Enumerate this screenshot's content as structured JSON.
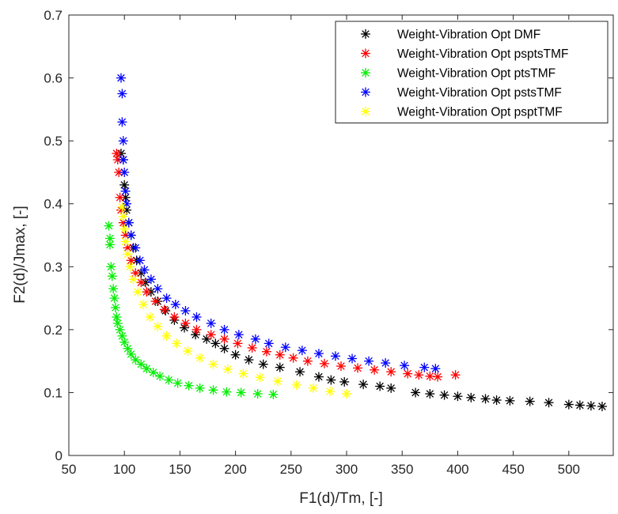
{
  "chart_data": {
    "type": "scatter",
    "title": "",
    "xlabel": "F1(d)/Tm, [-]",
    "ylabel": "F2(d)/Jmax, [-]",
    "xlim": [
      50,
      540
    ],
    "ylim": [
      0,
      0.7
    ],
    "xticks": [
      "50",
      "100",
      "150",
      "200",
      "250",
      "300",
      "350",
      "400",
      "450",
      "500"
    ],
    "yticks": [
      "0",
      "0.1",
      "0.2",
      "0.3",
      "0.4",
      "0.5",
      "0.6",
      "0.7"
    ],
    "grid": false,
    "legend_position": "top-right",
    "marker": "asterisk",
    "series": [
      {
        "name": "Weight-Vibration Opt DMF",
        "color": "#000000",
        "x": [
          97,
          99,
          100,
          101,
          102,
          104,
          106,
          108,
          111,
          115,
          119,
          124,
          130,
          137,
          145,
          154,
          164,
          174,
          182,
          190,
          200,
          212,
          225,
          240,
          258,
          275,
          286,
          298,
          315,
          330,
          340,
          362,
          375,
          388,
          400,
          412,
          425,
          435,
          447,
          465,
          482,
          500,
          510,
          520,
          530
        ],
        "y": [
          0.48,
          0.47,
          0.43,
          0.41,
          0.39,
          0.37,
          0.35,
          0.33,
          0.31,
          0.29,
          0.275,
          0.26,
          0.245,
          0.23,
          0.215,
          0.203,
          0.192,
          0.185,
          0.178,
          0.17,
          0.16,
          0.152,
          0.145,
          0.14,
          0.133,
          0.125,
          0.12,
          0.117,
          0.113,
          0.11,
          0.107,
          0.1,
          0.098,
          0.096,
          0.094,
          0.092,
          0.09,
          0.088,
          0.087,
          0.086,
          0.084,
          0.081,
          0.08,
          0.079,
          0.078
        ]
      },
      {
        "name": "Weight-Vibration Opt psptsTMF",
        "color": "#ff0000",
        "x": [
          93,
          94,
          95,
          96,
          97,
          99,
          101,
          103,
          106,
          110,
          115,
          120,
          128,
          136,
          145,
          155,
          165,
          178,
          190,
          202,
          215,
          228,
          240,
          252,
          265,
          280,
          295,
          310,
          325,
          340,
          355,
          365,
          375,
          382,
          398
        ],
        "y": [
          0.48,
          0.47,
          0.45,
          0.41,
          0.39,
          0.37,
          0.35,
          0.33,
          0.31,
          0.29,
          0.275,
          0.26,
          0.245,
          0.232,
          0.22,
          0.21,
          0.2,
          0.192,
          0.185,
          0.178,
          0.171,
          0.165,
          0.16,
          0.155,
          0.15,
          0.146,
          0.142,
          0.139,
          0.136,
          0.133,
          0.13,
          0.128,
          0.126,
          0.125,
          0.128
        ]
      },
      {
        "name": "Weight-Vibration Opt ptsTMF",
        "color": "#00ee00",
        "x": [
          86,
          87,
          87,
          88,
          89,
          90,
          91,
          92,
          93,
          94,
          96,
          98,
          100,
          103,
          106,
          110,
          115,
          120,
          126,
          132,
          140,
          148,
          158,
          168,
          180,
          192,
          205,
          220,
          234
        ],
        "y": [
          0.365,
          0.345,
          0.335,
          0.3,
          0.285,
          0.265,
          0.25,
          0.235,
          0.22,
          0.21,
          0.2,
          0.19,
          0.18,
          0.17,
          0.161,
          0.152,
          0.145,
          0.138,
          0.132,
          0.126,
          0.12,
          0.115,
          0.111,
          0.107,
          0.104,
          0.101,
          0.1,
          0.098,
          0.097
        ]
      },
      {
        "name": "Weight-Vibration Opt pstsTMF",
        "color": "#0000ff",
        "x": [
          97,
          98,
          98,
          99,
          99,
          100,
          101,
          102,
          104,
          106,
          110,
          114,
          118,
          124,
          130,
          138,
          146,
          155,
          165,
          178,
          190,
          203,
          218,
          230,
          245,
          260,
          275,
          290,
          305,
          320,
          335,
          352,
          370,
          380
        ],
        "y": [
          0.6,
          0.575,
          0.53,
          0.5,
          0.47,
          0.45,
          0.42,
          0.4,
          0.37,
          0.35,
          0.33,
          0.31,
          0.295,
          0.28,
          0.265,
          0.25,
          0.24,
          0.23,
          0.22,
          0.21,
          0.2,
          0.192,
          0.185,
          0.178,
          0.172,
          0.167,
          0.162,
          0.158,
          0.154,
          0.15,
          0.147,
          0.143,
          0.14,
          0.138
        ]
      },
      {
        "name": "Weight-Vibration Opt psptTMF",
        "color": "#ffff00",
        "x": [
          98,
          99,
          100,
          101,
          103,
          105,
          108,
          112,
          117,
          123,
          130,
          138,
          147,
          157,
          168,
          180,
          193,
          207,
          222,
          238,
          255,
          270,
          285,
          300
        ],
        "y": [
          0.395,
          0.38,
          0.36,
          0.34,
          0.32,
          0.3,
          0.28,
          0.26,
          0.24,
          0.22,
          0.205,
          0.19,
          0.178,
          0.166,
          0.155,
          0.145,
          0.137,
          0.13,
          0.124,
          0.118,
          0.112,
          0.107,
          0.102,
          0.098
        ]
      }
    ]
  }
}
